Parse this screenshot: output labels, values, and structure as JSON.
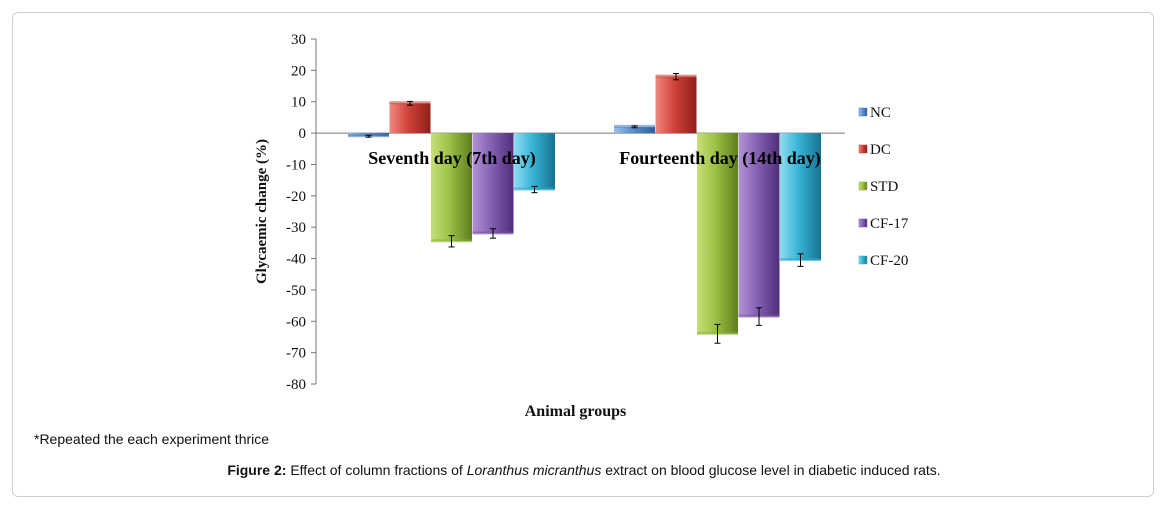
{
  "chart_data": {
    "type": "bar",
    "categories": [
      "Seventh day (7th day)",
      "Fourteenth day (14th day)"
    ],
    "series": [
      {
        "name": "NC",
        "values": [
          -1,
          2
        ],
        "errors": [
          0.3,
          0.3
        ],
        "color": "#4a7ebb"
      },
      {
        "name": "DC",
        "values": [
          9.5,
          18
        ],
        "errors": [
          0.6,
          1.0
        ],
        "color": "#c0392b"
      },
      {
        "name": "STD",
        "values": [
          -34.5,
          -64
        ],
        "errors": [
          1.8,
          3.0
        ],
        "color": "#8db33a"
      },
      {
        "name": "CF-17",
        "values": [
          -32,
          -58.5
        ],
        "errors": [
          1.5,
          2.8
        ],
        "color": "#7b52a3"
      },
      {
        "name": "CF-20",
        "values": [
          -18,
          -40.5
        ],
        "errors": [
          1.0,
          2.0
        ],
        "color": "#2aa8c9"
      }
    ],
    "ylabel": "Glycaemic change (%)",
    "xlabel": "Animal groups",
    "ylim": [
      -80,
      30
    ],
    "yticks": [
      "30",
      "20",
      "10",
      "0",
      "-10",
      "-20",
      "-30",
      "-40",
      "-50",
      "-60",
      "-70",
      "-80"
    ],
    "grid": false,
    "legend": "right"
  },
  "footnote": "*Repeated the each experiment thrice",
  "caption": {
    "label": "Figure 2:",
    "text_before": " Effect of column fractions of ",
    "species": "Loranthus micranthus",
    "text_after": " extract on blood glucose level in diabetic induced rats."
  }
}
